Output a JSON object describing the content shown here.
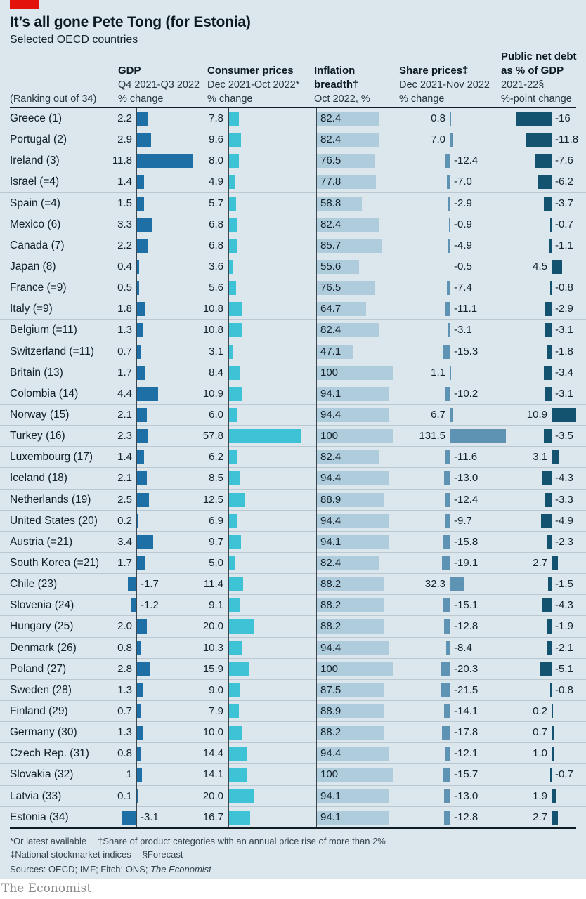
{
  "chart_data": {
    "type": "table",
    "title": "It’s all gone Pete Tong (for Estonia)",
    "subtitle": "Selected OECD countries",
    "ranking_label": "(Ranking out of 34)",
    "columns": [
      {
        "bold": [
          "GDP"
        ],
        "sub": [
          "Q4 2021-Q3 2022",
          "% change"
        ]
      },
      {
        "bold": [
          "Consumer prices"
        ],
        "sub": [
          "Dec 2021-Oct 2022*",
          "% change"
        ]
      },
      {
        "bold": [
          "Inflation",
          "breadth†"
        ],
        "sub": [
          "Oct 2022, %"
        ]
      },
      {
        "bold": [
          "Share prices‡"
        ],
        "sub": [
          "Dec 2021-Nov 2022",
          "% change"
        ]
      },
      {
        "bold": [
          "Public net debt",
          "as % of GDP"
        ],
        "sub": [
          "2021-22§",
          "%-point change"
        ]
      }
    ],
    "colors": {
      "gdp_bar": "#1e6fa5",
      "consumer_prices_bar": "#3dc2d6",
      "inflation_breadth_bar": "#afccdd",
      "share_prices_bar": "#5e93b3",
      "debt_bar": "#14536f",
      "accent_red": "#e3120b",
      "background": "#dce7ed"
    },
    "rows": [
      {
        "country": "Greece (1)",
        "gdp": "2.2",
        "cpi": "7.8",
        "breadth": "82.4",
        "shares": "0.8",
        "debt": "-16"
      },
      {
        "country": "Portugal (2)",
        "gdp": "2.9",
        "cpi": "9.6",
        "breadth": "82.4",
        "shares": "7.0",
        "debt": "-11.8"
      },
      {
        "country": "Ireland (3)",
        "gdp": "11.8",
        "cpi": "8.0",
        "breadth": "76.5",
        "shares": "-12.4",
        "debt": "-7.6"
      },
      {
        "country": "Israel (=4)",
        "gdp": "1.4",
        "cpi": "4.9",
        "breadth": "77.8",
        "shares": "-7.0",
        "debt": "-6.2"
      },
      {
        "country": "Spain (=4)",
        "gdp": "1.5",
        "cpi": "5.7",
        "breadth": "58.8",
        "shares": "-2.9",
        "debt": "-3.7"
      },
      {
        "country": "Mexico (6)",
        "gdp": "3.3",
        "cpi": "6.8",
        "breadth": "82.4",
        "shares": "-0.9",
        "debt": "-0.7"
      },
      {
        "country": "Canada (7)",
        "gdp": "2.2",
        "cpi": "6.8",
        "breadth": "85.7",
        "shares": "-4.9",
        "debt": "-1.1"
      },
      {
        "country": "Japan (8)",
        "gdp": "0.4",
        "cpi": "3.6",
        "breadth": "55.6",
        "shares": "-0.5",
        "debt": "4.5"
      },
      {
        "country": "France (=9)",
        "gdp": "0.5",
        "cpi": "5.6",
        "breadth": "76.5",
        "shares": "-7.4",
        "debt": "-0.8"
      },
      {
        "country": "Italy (=9)",
        "gdp": "1.8",
        "cpi": "10.8",
        "breadth": "64.7",
        "shares": "-11.1",
        "debt": "-2.9"
      },
      {
        "country": "Belgium (=11)",
        "gdp": "1.3",
        "cpi": "10.8",
        "breadth": "82.4",
        "shares": "-3.1",
        "debt": "-3.1"
      },
      {
        "country": "Switzerland (=11)",
        "gdp": "0.7",
        "cpi": "3.1",
        "breadth": "47.1",
        "shares": "-15.3",
        "debt": "-1.8"
      },
      {
        "country": "Britain (13)",
        "gdp": "1.7",
        "cpi": "8.4",
        "breadth": "100",
        "shares": "1.1",
        "debt": "-3.4"
      },
      {
        "country": "Colombia (14)",
        "gdp": "4.4",
        "cpi": "10.9",
        "breadth": "94.1",
        "shares": "-10.2",
        "debt": "-3.1"
      },
      {
        "country": "Norway (15)",
        "gdp": "2.1",
        "cpi": "6.0",
        "breadth": "94.4",
        "shares": "6.7",
        "debt": "10.9"
      },
      {
        "country": "Turkey (16)",
        "gdp": "2.3",
        "cpi": "57.8",
        "breadth": "100",
        "shares": "131.5",
        "debt": "-3.5"
      },
      {
        "country": "Luxembourg (17)",
        "gdp": "1.4",
        "cpi": "6.2",
        "breadth": "82.4",
        "shares": "-11.6",
        "debt": "3.1"
      },
      {
        "country": "Iceland (18)",
        "gdp": "2.1",
        "cpi": "8.5",
        "breadth": "94.4",
        "shares": "-13.0",
        "debt": "-4.3"
      },
      {
        "country": "Netherlands (19)",
        "gdp": "2.5",
        "cpi": "12.5",
        "breadth": "88.9",
        "shares": "-12.4",
        "debt": "-3.3"
      },
      {
        "country": "United States (20)",
        "gdp": "0.2",
        "cpi": "6.9",
        "breadth": "94.4",
        "shares": "-9.7",
        "debt": "-4.9"
      },
      {
        "country": "Austria (=21)",
        "gdp": "3.4",
        "cpi": "9.7",
        "breadth": "94.1",
        "shares": "-15.8",
        "debt": "-2.3"
      },
      {
        "country": "South Korea (=21)",
        "gdp": "1.7",
        "cpi": "5.0",
        "breadth": "82.4",
        "shares": "-19.1",
        "debt": "2.7"
      },
      {
        "country": "Chile (23)",
        "gdp": "-1.7",
        "cpi": "11.4",
        "breadth": "88.2",
        "shares": "32.3",
        "debt": "-1.5"
      },
      {
        "country": "Slovenia (24)",
        "gdp": "-1.2",
        "cpi": "9.1",
        "breadth": "88.2",
        "shares": "-15.1",
        "debt": "-4.3"
      },
      {
        "country": "Hungary (25)",
        "gdp": "2.0",
        "cpi": "20.0",
        "breadth": "88.2",
        "shares": "-12.8",
        "debt": "-1.9"
      },
      {
        "country": "Denmark (26)",
        "gdp": "0.8",
        "cpi": "10.3",
        "breadth": "94.4",
        "shares": "-8.4",
        "debt": "-2.1"
      },
      {
        "country": "Poland (27)",
        "gdp": "2.8",
        "cpi": "15.9",
        "breadth": "100",
        "shares": "-20.3",
        "debt": "-5.1"
      },
      {
        "country": "Sweden (28)",
        "gdp": "1.3",
        "cpi": "9.0",
        "breadth": "87.5",
        "shares": "-21.5",
        "debt": "-0.8"
      },
      {
        "country": "Finland (29)",
        "gdp": "0.7",
        "cpi": "7.9",
        "breadth": "88.9",
        "shares": "-14.1",
        "debt": "0.2"
      },
      {
        "country": "Germany (30)",
        "gdp": "1.3",
        "cpi": "10.0",
        "breadth": "88.2",
        "shares": "-17.8",
        "debt": "0.7"
      },
      {
        "country": "Czech Rep. (31)",
        "gdp": "0.8",
        "cpi": "14.4",
        "breadth": "94.4",
        "shares": "-12.1",
        "debt": "1.0"
      },
      {
        "country": "Slovakia (32)",
        "gdp": "1",
        "cpi": "14.1",
        "breadth": "100",
        "shares": "-15.7",
        "debt": "-0.7"
      },
      {
        "country": "Latvia (33)",
        "gdp": "0.1",
        "cpi": "20.0",
        "breadth": "94.1",
        "shares": "-13.0",
        "debt": "1.9"
      },
      {
        "country": "Estonia (34)",
        "gdp": "-3.1",
        "cpi": "16.7",
        "breadth": "94.1",
        "shares": "-12.8",
        "debt": "2.7"
      }
    ]
  },
  "footnotes": {
    "line1": [
      "*Or latest available",
      "†Share of product categories with an annual price rise of more than 2%"
    ],
    "line2": [
      "‡National stockmarket indices",
      "§Forecast"
    ],
    "sources_prefix": "Sources: OECD; IMF; Fitch; ONS; ",
    "sources_italic": "The Economist"
  },
  "brand": {
    "logo_text": "The Economist"
  }
}
